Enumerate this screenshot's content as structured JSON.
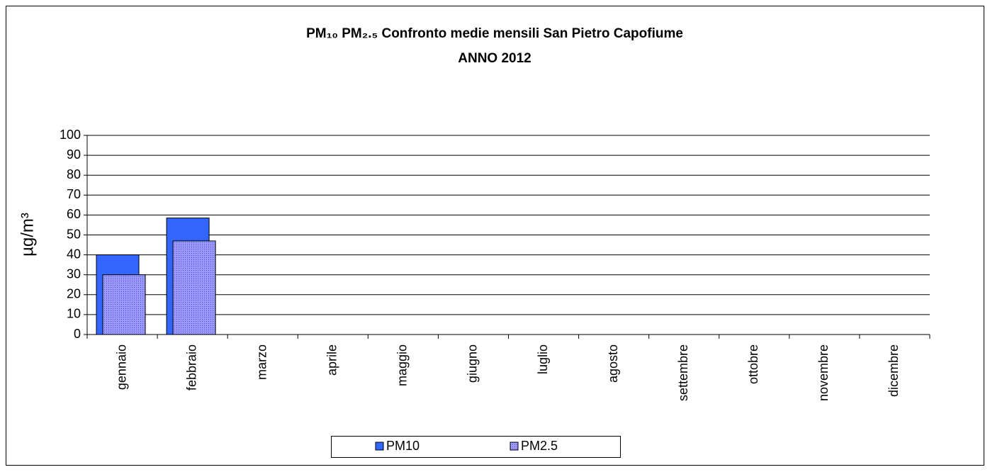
{
  "chart_data": {
    "type": "bar",
    "title": "PM₁₀ PM₂.₅ Confronto medie mensili San Pietro Capofiume",
    "subtitle": "ANNO 2012",
    "y_label": "µg/m³",
    "categories": [
      "gennaio",
      "febbraio",
      "marzo",
      "aprile",
      "maggio",
      "giugno",
      "luglio",
      "agosto",
      "settembre",
      "ottobre",
      "novembre",
      "dicembre"
    ],
    "series": [
      {
        "name": "PM10",
        "color": "#3366ff",
        "values": [
          40,
          58.5,
          null,
          null,
          null,
          null,
          null,
          null,
          null,
          null,
          null,
          null
        ]
      },
      {
        "name": "PM2.5",
        "color": "#9999ff",
        "values": [
          30,
          47,
          null,
          null,
          null,
          null,
          null,
          null,
          null,
          null,
          null,
          null
        ]
      }
    ],
    "ylim": [
      0,
      100
    ],
    "yticks": [
      0,
      10,
      20,
      30,
      40,
      50,
      60,
      70,
      80,
      90,
      100
    ],
    "grid": true,
    "legend": "bottom"
  }
}
